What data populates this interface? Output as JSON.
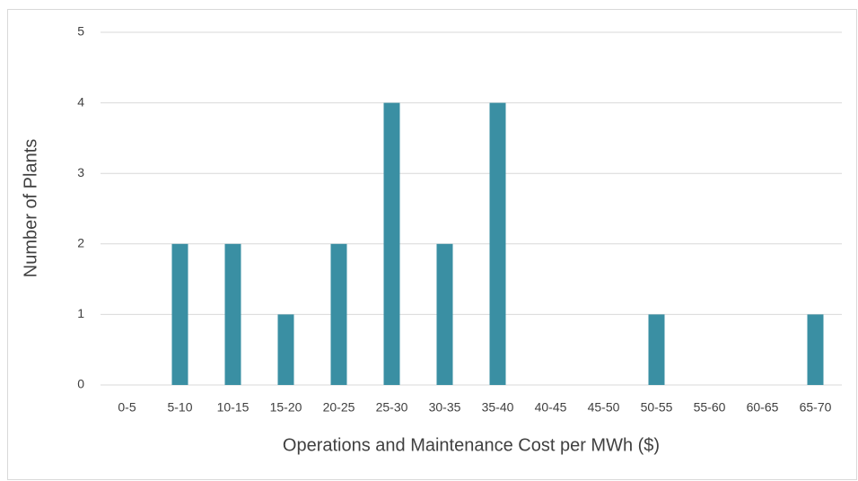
{
  "chart_data": {
    "type": "bar",
    "x_label": "Operations and Maintenance Cost per MWh ($)",
    "y_label": "Number of Plants",
    "categories": [
      "0-5",
      "5-10",
      "10-15",
      "15-20",
      "20-25",
      "25-30",
      "30-35",
      "35-40",
      "40-45",
      "45-50",
      "50-55",
      "55-60",
      "60-65",
      "65-70"
    ],
    "values": [
      0,
      2,
      2,
      1,
      2,
      4,
      2,
      4,
      0,
      0,
      1,
      0,
      0,
      1
    ],
    "color": "#3a8fa3",
    "ylim": [
      0,
      5
    ],
    "yticks": [
      0,
      1,
      2,
      3,
      4,
      5
    ],
    "grid": true
  }
}
